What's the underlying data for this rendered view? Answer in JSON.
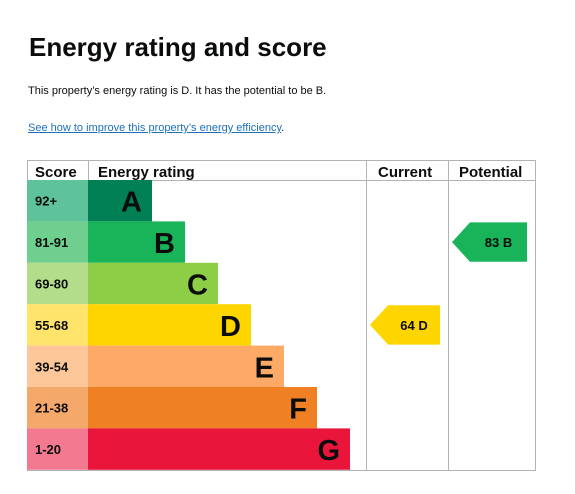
{
  "page": {
    "title": "Energy rating and score",
    "summary": "This property’s energy rating is D. It has the potential to be B.",
    "link_text": "See how to improve this property’s energy efficiency",
    "link_suffix": "."
  },
  "table_headers": {
    "score": "Score",
    "rating": "Energy rating",
    "current": "Current",
    "potential": "Potential"
  },
  "bands": [
    {
      "score": "92+",
      "letter": "A",
      "color": "#008054",
      "score_bg": "#5ec29b"
    },
    {
      "score": "81-91",
      "letter": "B",
      "color": "#19b459",
      "score_bg": "#6fcf8e"
    },
    {
      "score": "69-80",
      "letter": "C",
      "color": "#8dce46",
      "score_bg": "#b3dd8a"
    },
    {
      "score": "55-68",
      "letter": "D",
      "color": "#ffd500",
      "score_bg": "#ffe36a"
    },
    {
      "score": "39-54",
      "letter": "E",
      "color": "#fcaa65",
      "score_bg": "#fdc79a"
    },
    {
      "score": "21-38",
      "letter": "F",
      "color": "#ef8023",
      "score_bg": "#f4a86a"
    },
    {
      "score": "1-20",
      "letter": "G",
      "color": "#e9153b",
      "score_bg": "#f27990"
    }
  ],
  "current": {
    "score": 64,
    "letter": "D",
    "label": "64  D",
    "color": "#ffd500"
  },
  "potential": {
    "score": 83,
    "letter": "B",
    "label": "83  B",
    "color": "#19b459"
  }
}
